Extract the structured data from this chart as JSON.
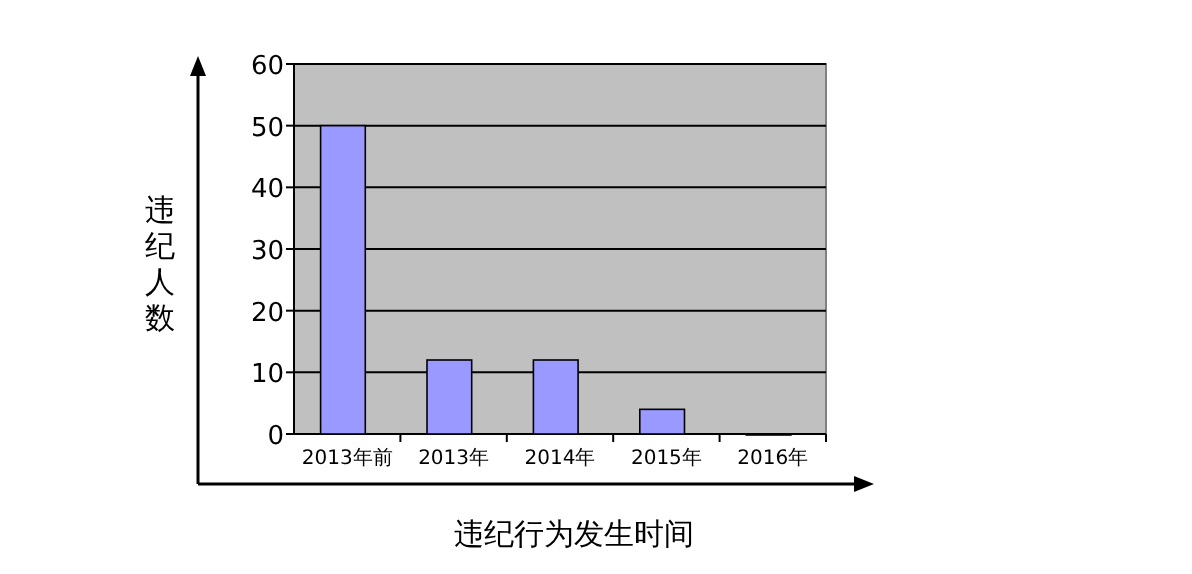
{
  "chart_data": {
    "type": "bar",
    "xlabel": "违纪行为发生时间",
    "ylabel": "违纪人数",
    "categories": [
      "2013年前",
      "2013年",
      "2014年",
      "2015年",
      "2016年"
    ],
    "values": [
      50,
      12,
      12,
      4,
      0
    ],
    "color": "#9999ff",
    "ylim": [
      0,
      60
    ],
    "yticks": [
      0,
      10,
      20,
      30,
      40,
      50,
      60
    ],
    "grid": "y"
  }
}
